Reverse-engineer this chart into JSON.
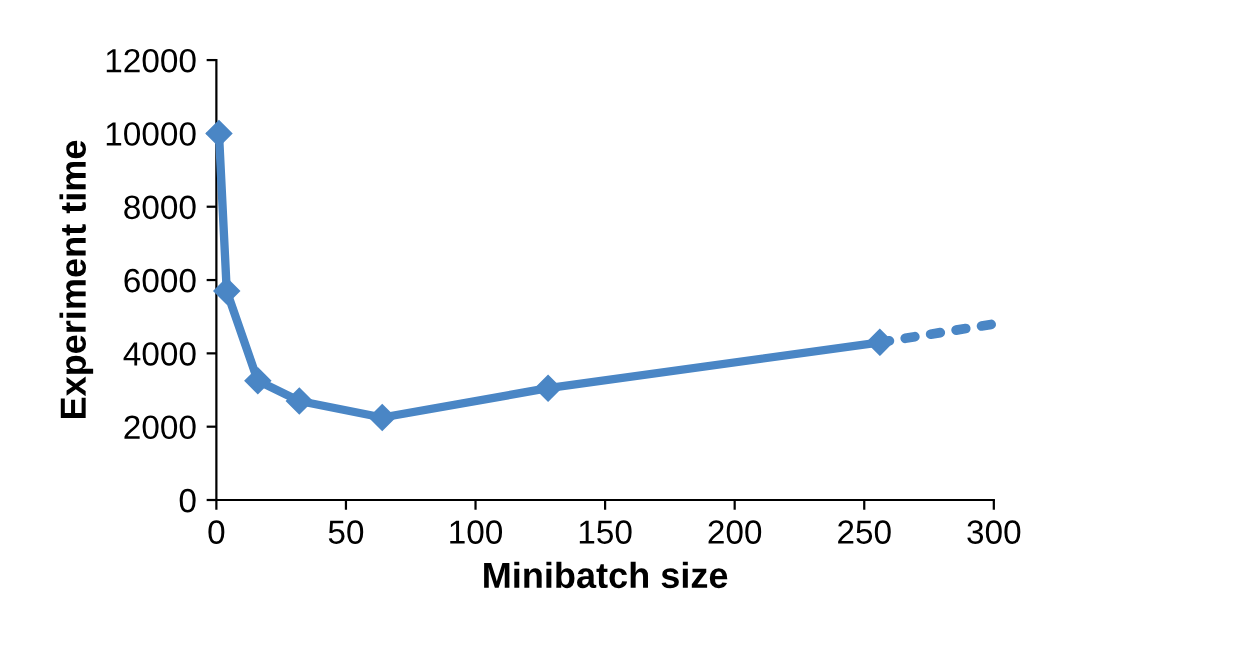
{
  "chart_data": {
    "type": "line",
    "xlabel": "Minibatch size",
    "ylabel": "Experiment time",
    "xlim": [
      0,
      300
    ],
    "xticks": [
      0,
      50,
      100,
      150,
      200,
      250,
      300
    ],
    "ylim": [
      0,
      12000
    ],
    "yticks": [
      0,
      2000,
      4000,
      6000,
      8000,
      10000,
      12000
    ],
    "grid": false,
    "legend": false,
    "series": [
      {
        "color": "#4a86c5",
        "x": [
          1,
          4,
          16,
          32,
          64,
          128,
          256
        ],
        "values": [
          10000,
          5700,
          3250,
          2700,
          2250,
          3050,
          4300
        ],
        "marker": "diamond",
        "line_style": "solid"
      },
      {
        "color": "#4a86c5",
        "x": [
          256,
          300
        ],
        "values": [
          4300,
          4800
        ],
        "marker": "none",
        "line_style": "dotted"
      }
    ]
  }
}
